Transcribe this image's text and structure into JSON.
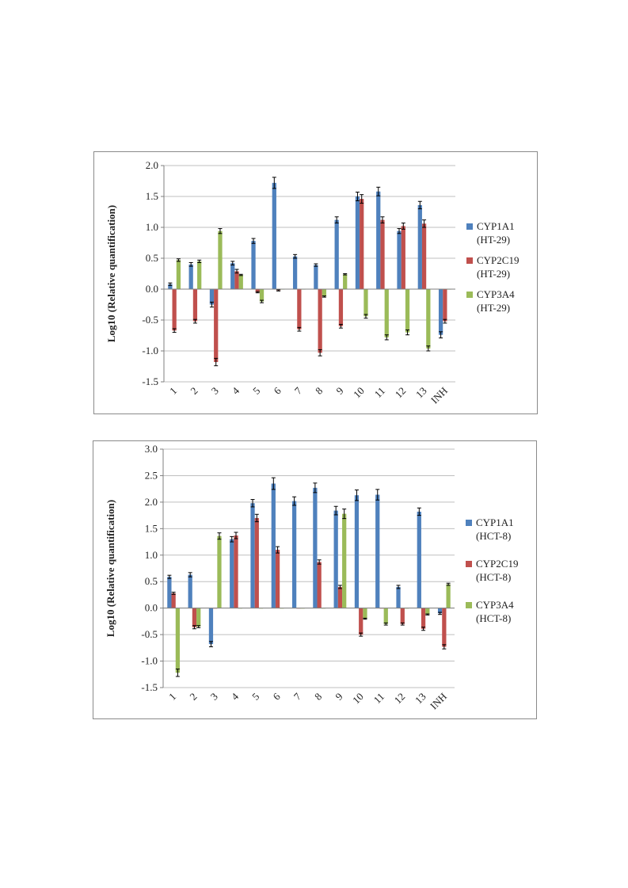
{
  "charts": [
    {
      "type": "bar",
      "ylabel": "Log10 (Relative quantification)",
      "ylim": [
        -1.5,
        2.0
      ],
      "yticks": [
        "2.0",
        "1.5",
        "1.0",
        "0.5",
        "0.0",
        "-0.5",
        "-1.0",
        "-1.5"
      ],
      "grid": true,
      "legend_position": "right",
      "categories": [
        "1",
        "2",
        "3",
        "4",
        "5",
        "6",
        "7",
        "8",
        "9",
        "10",
        "11",
        "12",
        "13",
        "INH"
      ],
      "series": [
        {
          "name": "CYP1A1",
          "sub": "(HT-29)",
          "color": "#4f81bd",
          "values": [
            0.08,
            0.4,
            -0.25,
            0.42,
            0.78,
            1.72,
            0.53,
            0.39,
            1.12,
            1.5,
            1.58,
            0.94,
            1.36,
            -0.74
          ],
          "err": [
            0.02,
            0.03,
            0.04,
            0.03,
            0.04,
            0.09,
            0.03,
            0.02,
            0.05,
            0.07,
            0.07,
            0.04,
            0.06,
            0.05
          ]
        },
        {
          "name": "CYP2C19",
          "sub": "(HT-29)",
          "color": "#c0504d",
          "values": [
            -0.67,
            -0.52,
            -1.18,
            0.29,
            -0.05,
            -0.02,
            -0.65,
            -1.03,
            -0.6,
            1.46,
            1.12,
            1.02,
            1.06,
            -0.52
          ],
          "err": [
            0.03,
            0.03,
            0.06,
            0.03,
            0.01,
            0.01,
            0.03,
            0.05,
            0.03,
            0.07,
            0.05,
            0.05,
            0.06,
            0.03
          ]
        },
        {
          "name": "CYP3A4",
          "sub": "(HT-29)",
          "color": "#9bbb59",
          "values": [
            0.47,
            0.45,
            0.94,
            0.23,
            -0.2,
            0.0,
            0.0,
            -0.12,
            0.24,
            -0.44,
            -0.78,
            -0.7,
            -0.96,
            0.0
          ],
          "err": [
            0.02,
            0.02,
            0.04,
            0.01,
            0.02,
            0.0,
            0.0,
            0.01,
            0.01,
            0.03,
            0.04,
            0.04,
            0.04,
            0.0
          ]
        }
      ]
    },
    {
      "type": "bar",
      "ylabel": "Log10 (Relative quantification)",
      "ylim": [
        -1.5,
        3.0
      ],
      "yticks": [
        "3.0",
        "2.5",
        "2.0",
        "1.5",
        "1.0",
        "0.5",
        "0.0",
        "-0.5",
        "-1.0",
        "-1.5"
      ],
      "grid": true,
      "legend_position": "right",
      "categories": [
        "1",
        "2",
        "3",
        "4",
        "5",
        "6",
        "7",
        "8",
        "9",
        "10",
        "11",
        "12",
        "13",
        "INH"
      ],
      "series": [
        {
          "name": "CYP1A1",
          "sub": "(HCT-8)",
          "color": "#4f81bd",
          "values": [
            0.59,
            0.63,
            -0.68,
            1.3,
            1.98,
            2.35,
            2.02,
            2.27,
            1.84,
            2.13,
            2.14,
            0.4,
            1.82,
            -0.1
          ],
          "err": [
            0.03,
            0.04,
            0.05,
            0.05,
            0.07,
            0.11,
            0.08,
            0.09,
            0.08,
            0.1,
            0.1,
            0.03,
            0.07,
            0.02
          ]
        },
        {
          "name": "CYP2C19",
          "sub": "(HCT-8)",
          "color": "#c0504d",
          "values": [
            0.28,
            -0.36,
            0.0,
            1.37,
            1.7,
            1.1,
            0.0,
            0.87,
            0.4,
            -0.5,
            0.0,
            -0.3,
            -0.39,
            -0.73
          ],
          "err": [
            0.02,
            0.03,
            0.0,
            0.06,
            0.07,
            0.06,
            0.0,
            0.04,
            0.03,
            0.03,
            0.0,
            0.02,
            0.03,
            0.04
          ]
        },
        {
          "name": "CYP3A4",
          "sub": "(HCT-8)",
          "color": "#9bbb59",
          "values": [
            -1.22,
            -0.35,
            1.36,
            0.0,
            0.0,
            0.0,
            0.0,
            0.0,
            1.78,
            -0.2,
            -0.3,
            0.0,
            -0.12,
            0.45
          ],
          "err": [
            0.07,
            0.02,
            0.06,
            0.0,
            0.0,
            0.0,
            0.0,
            0.0,
            0.09,
            0.01,
            0.02,
            0.0,
            0.01,
            0.02
          ]
        }
      ]
    }
  ]
}
